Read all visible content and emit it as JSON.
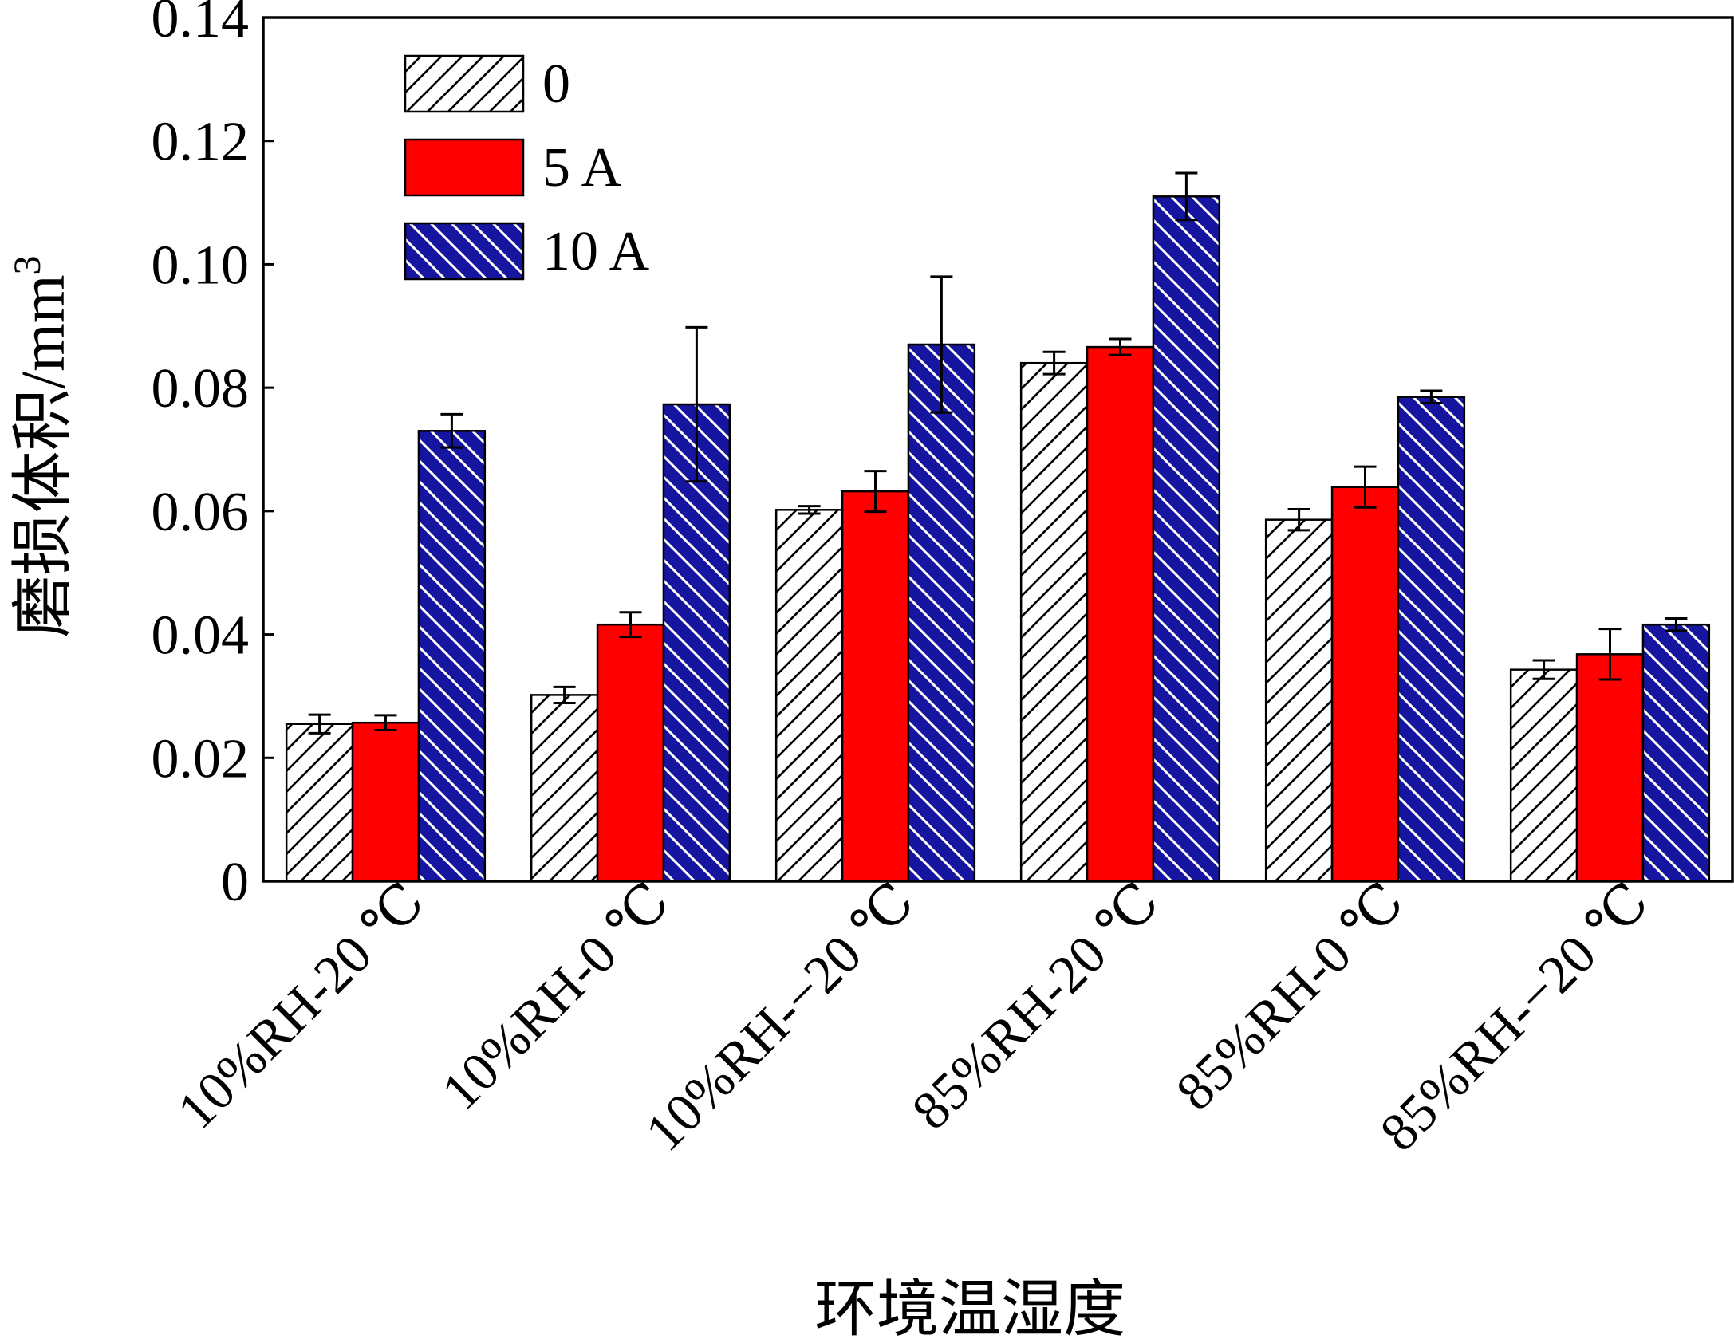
{
  "chart_data": {
    "type": "bar",
    "title": "",
    "xlabel": "环境温湿度",
    "ylabel": "磨损体积/mm",
    "ylabel_sup": "3",
    "ylim": [
      0,
      0.14
    ],
    "yticks": [
      "0",
      "0.02",
      "0.04",
      "0.06",
      "0.08",
      "0.10",
      "0.12",
      "0.14"
    ],
    "categories": [
      "10%RH-20 ℃",
      "10%RH-0 ℃",
      "10%RH-−20 ℃",
      "85%RH-20 ℃",
      "85%RH-0 ℃",
      "85%RH-−20 ℃"
    ],
    "legend_position": "top-left",
    "series": [
      {
        "name": "0",
        "values": [
          0.0255,
          0.0302,
          0.0602,
          0.084,
          0.0586,
          0.0343
        ],
        "errors": [
          0.0015,
          0.0013,
          0.0006,
          0.0018,
          0.0017,
          0.0015
        ],
        "color": "#ffffff",
        "hatch": "diag-up"
      },
      {
        "name": "5 A",
        "values": [
          0.0257,
          0.0416,
          0.0632,
          0.0866,
          0.0639,
          0.0368
        ],
        "errors": [
          0.0012,
          0.002,
          0.0033,
          0.0013,
          0.0033,
          0.0041
        ],
        "color": "#ff0000",
        "hatch": "none"
      },
      {
        "name": "10 A",
        "values": [
          0.073,
          0.0773,
          0.087,
          0.111,
          0.0785,
          0.0416
        ],
        "errors": [
          0.0027,
          0.0125,
          0.011,
          0.0038,
          0.001,
          0.001
        ],
        "color": "#1515a0",
        "hatch": "diag-down"
      }
    ]
  }
}
